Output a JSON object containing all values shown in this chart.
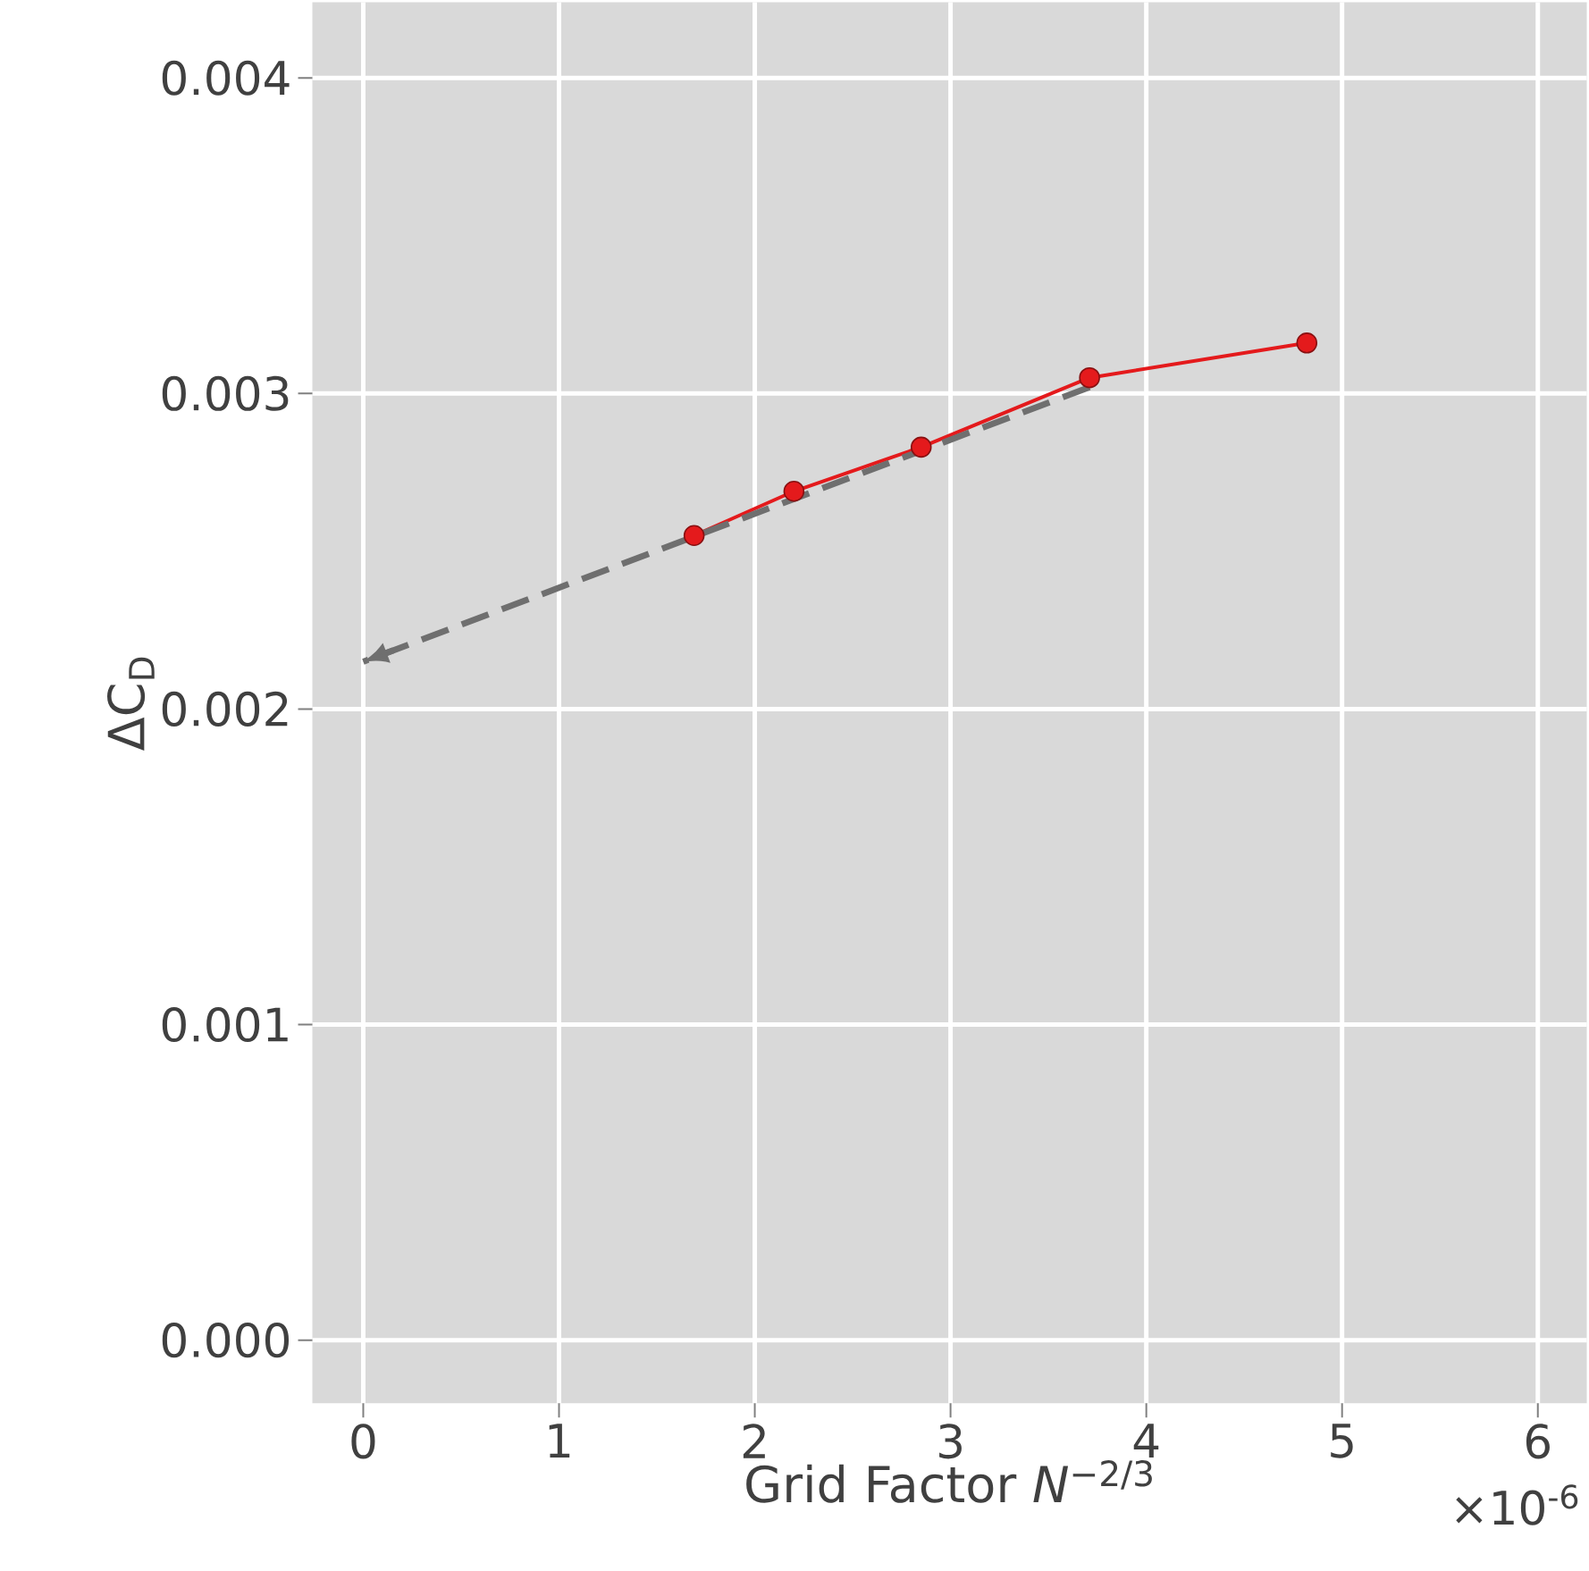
{
  "chart_data": {
    "type": "line",
    "xlabel": "Grid Factor *N*$^{−2/3}$",
    "ylabel": "ΔC$_{D}$",
    "xlim": [
      -0.26,
      6.25
    ],
    "ylim": [
      -0.0002,
      0.00424
    ],
    "xticks": [
      0,
      1,
      2,
      3,
      4,
      5,
      6
    ],
    "yticks": [
      {
        "value": 0,
        "label": "0.000"
      },
      {
        "value": 0.001,
        "label": "0.001"
      },
      {
        "value": 0.002,
        "label": "0.002"
      },
      {
        "value": 0.003,
        "label": "0.003"
      },
      {
        "value": 0.004,
        "label": "0.004"
      }
    ],
    "grid": true,
    "annotations": [
      "×10$^{-6}$"
    ],
    "series": [
      {
        "color": "#e41a1c",
        "marker": "circle",
        "line_style": "solid",
        "x": [
          1.69,
          2.2,
          2.85,
          3.71,
          4.82
        ],
        "values": [
          0.00255,
          0.00269,
          0.00283,
          0.00305,
          0.00316
        ]
      },
      {
        "color": "#6f6f6f",
        "marker": "none",
        "line_style": "dashed",
        "x": [
          3.71,
          0
        ],
        "values": [
          0.00302,
          0.00215
        ]
      }
    ]
  }
}
